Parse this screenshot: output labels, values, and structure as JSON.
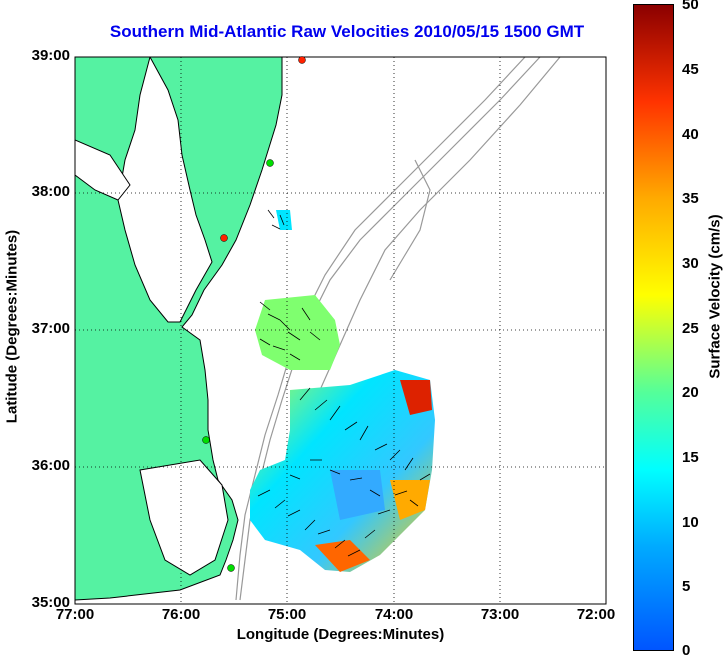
{
  "title": "Southern Mid-Atlantic Raw Velocities 2010/05/15 1500 GMT",
  "xlabel": "Longitude (Degrees:Minutes)",
  "ylabel": "Latitude (Degrees:Minutes)",
  "colorbar_label": "Surface Velocity (cm/s)",
  "x_ticks": [
    "77:00",
    "76:00",
    "75:00",
    "74:00",
    "73:00",
    "72:00"
  ],
  "y_ticks": [
    "39:00",
    "38:00",
    "37:00",
    "36:00",
    "35:00"
  ],
  "colorbar_ticks": [
    "50",
    "45",
    "40",
    "35",
    "30",
    "25",
    "20",
    "15",
    "10",
    "5",
    "0"
  ],
  "colors": {
    "land": "#55f2a2",
    "title": "#0000ee",
    "coast": "#000000",
    "bathymetry": "#999999",
    "station_green": "#00dd00",
    "station_red": "#ff2200"
  },
  "chart_data": {
    "type": "heatmap",
    "xlim": [
      -77,
      -72
    ],
    "ylim": [
      35,
      39
    ],
    "colorbar_range": [
      0,
      50
    ],
    "grid": true,
    "stations": [
      {
        "lon": -74.87,
        "lat": 38.93,
        "color": "red"
      },
      {
        "lon": -75.15,
        "lat": 38.22,
        "color": "green"
      },
      {
        "lon": -75.58,
        "lat": 37.72,
        "color": "red"
      },
      {
        "lon": -75.75,
        "lat": 36.17,
        "color": "green"
      },
      {
        "lon": -75.47,
        "lat": 35.25,
        "color": "green"
      }
    ]
  }
}
